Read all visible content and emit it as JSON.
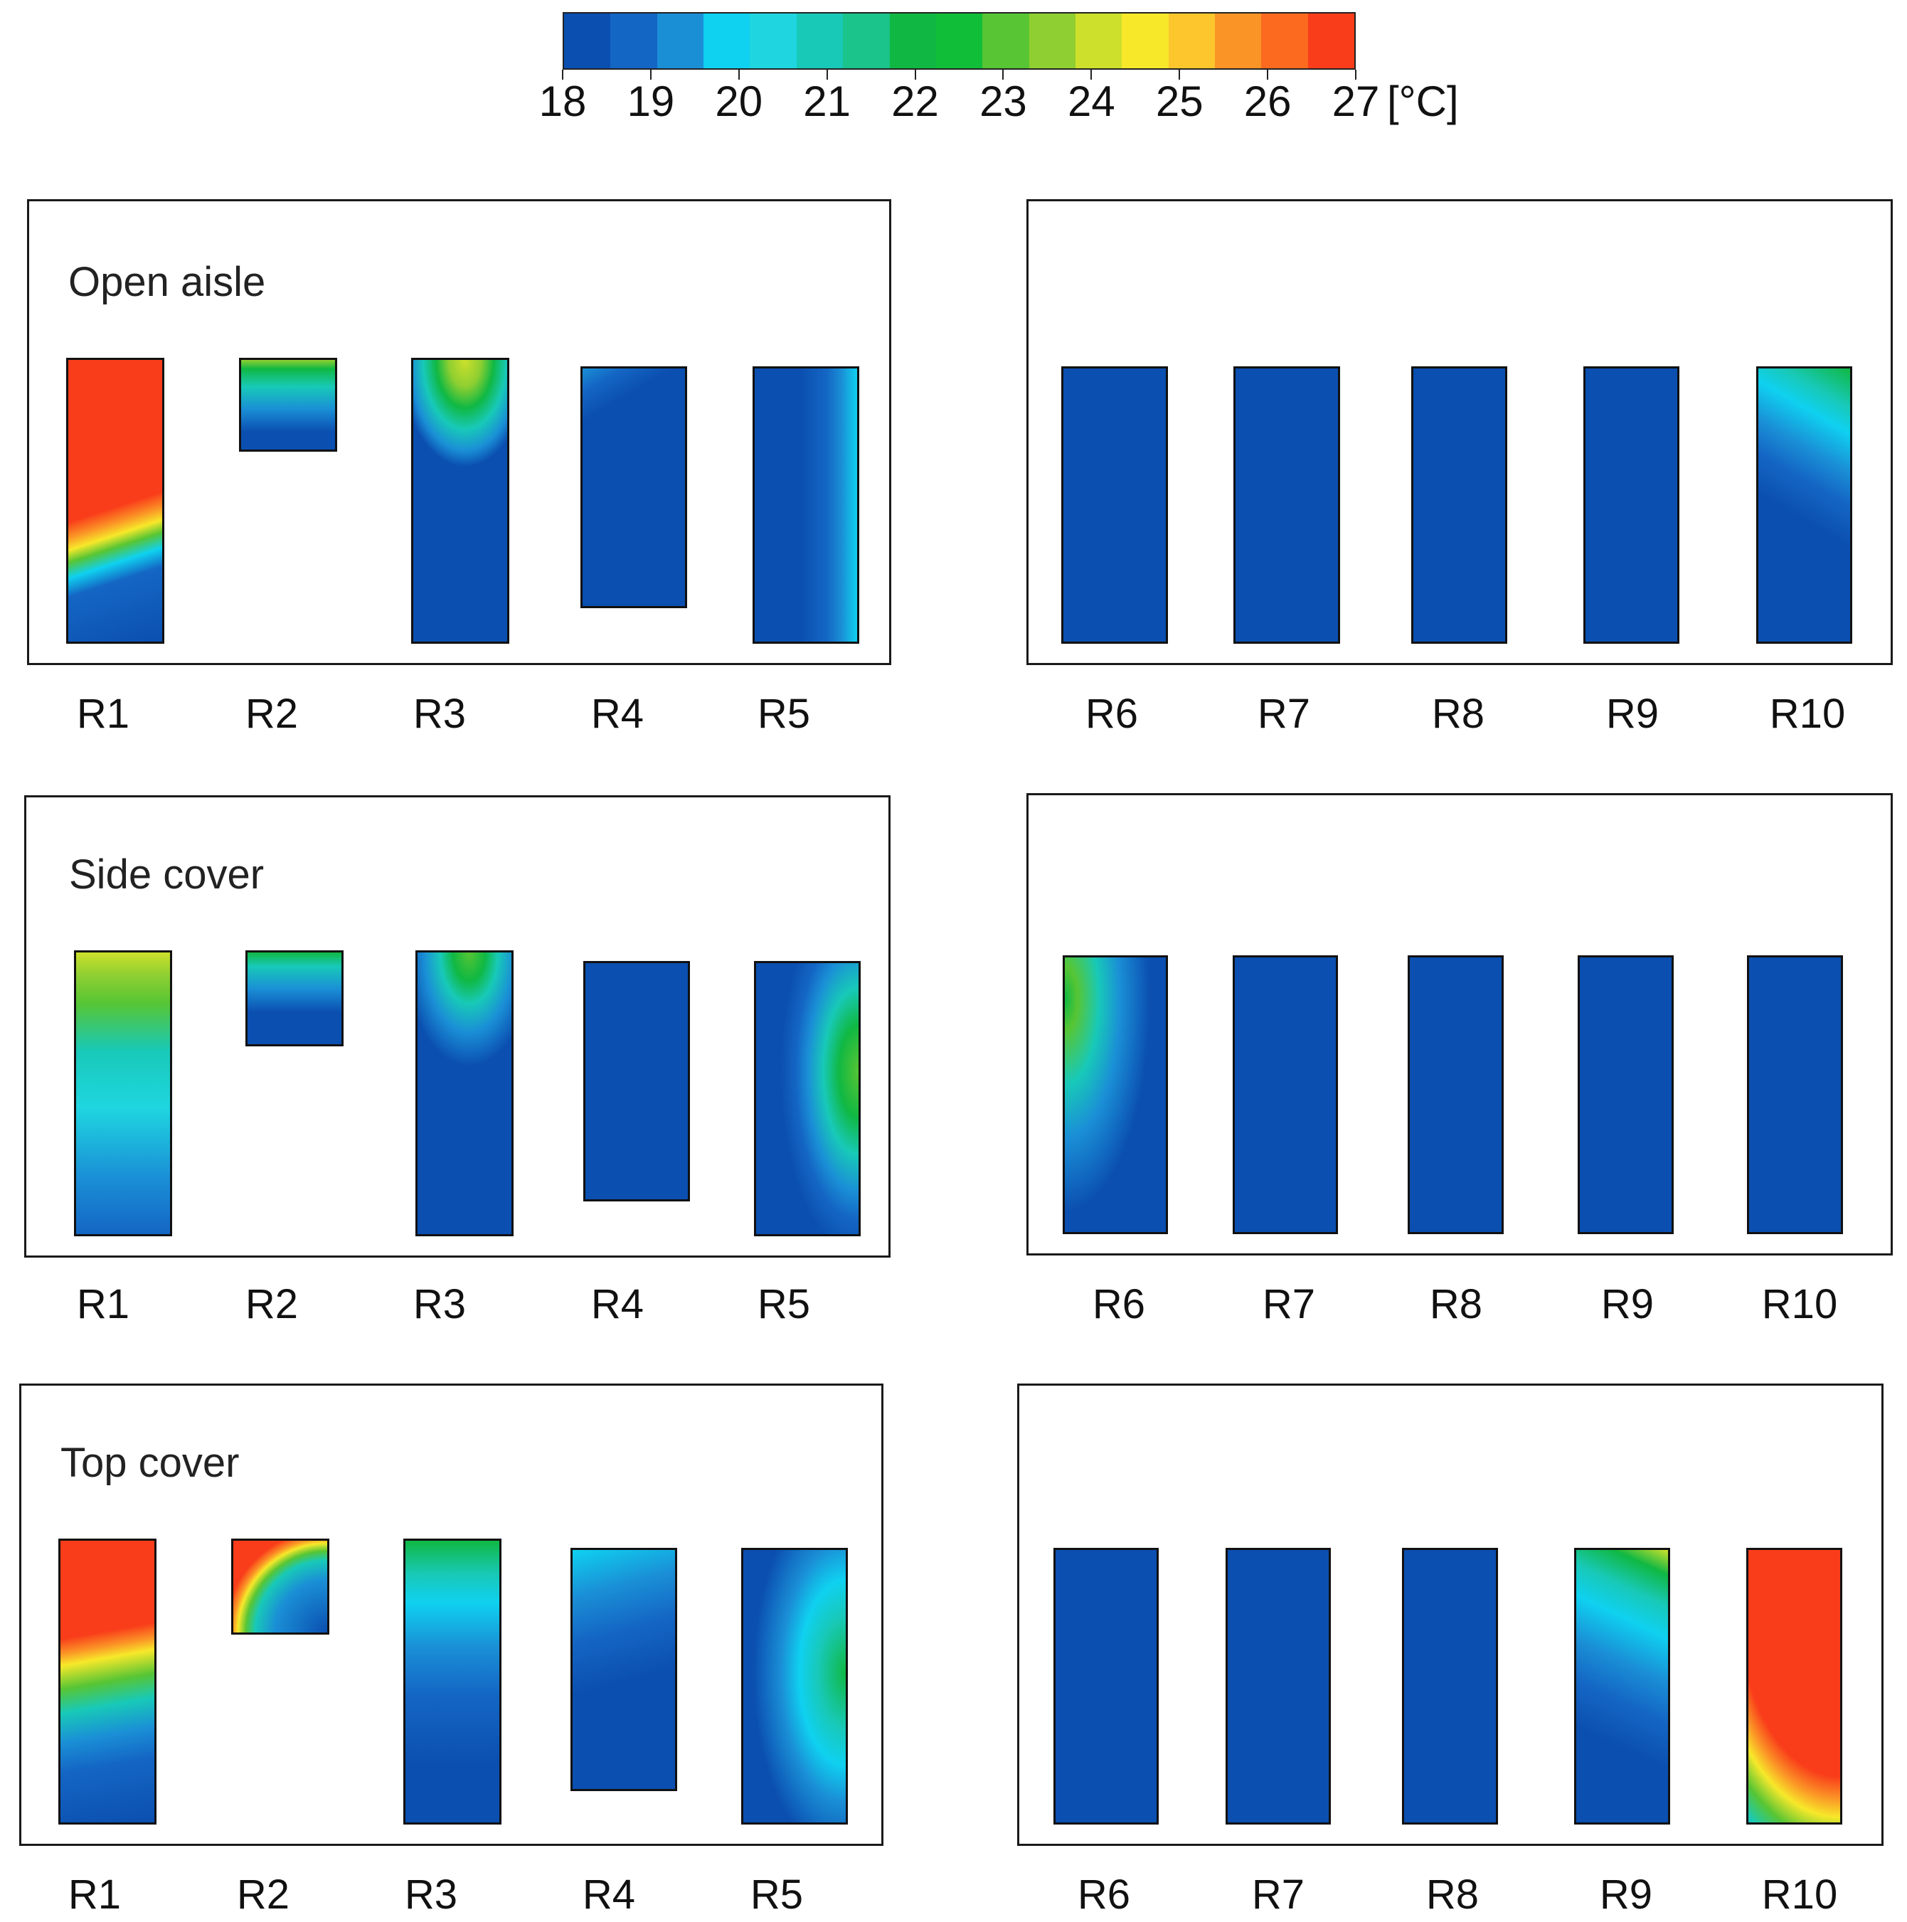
{
  "colorbar": {
    "ticks": [
      "18",
      "19",
      "20",
      "21",
      "22",
      "23",
      "24",
      "25",
      "26",
      "27"
    ],
    "unit": "[°C]",
    "colors": [
      "#0b4fb0",
      "#1466c4",
      "#1a8fd6",
      "#0fd1f0",
      "#1fd6e0",
      "#18c9b8",
      "#1ac48a",
      "#10b843",
      "#11be38",
      "#57c534",
      "#8fcf31",
      "#cde02c",
      "#f7e82a",
      "#fcc62c",
      "#fb9426",
      "#fb6a1f",
      "#f93d1a"
    ]
  },
  "blue": "#0b4fb0",
  "panels": [
    {
      "title": "Open aisle",
      "labels": [
        "R1",
        "R2",
        "R3",
        "R4",
        "R5"
      ]
    },
    {
      "title": "",
      "labels": [
        "R6",
        "R7",
        "R8",
        "R9",
        "R10"
      ]
    },
    {
      "title": "Side cover",
      "labels": [
        "R1",
        "R2",
        "R3",
        "R4",
        "R5"
      ]
    },
    {
      "title": "",
      "labels": [
        "R6",
        "R7",
        "R8",
        "R9",
        "R10"
      ]
    },
    {
      "title": "Top cover",
      "labels": [
        "R1",
        "R2",
        "R3",
        "R4",
        "R5"
      ]
    },
    {
      "title": "",
      "labels": [
        "R6",
        "R7",
        "R8",
        "R9",
        "R10"
      ]
    }
  ]
}
